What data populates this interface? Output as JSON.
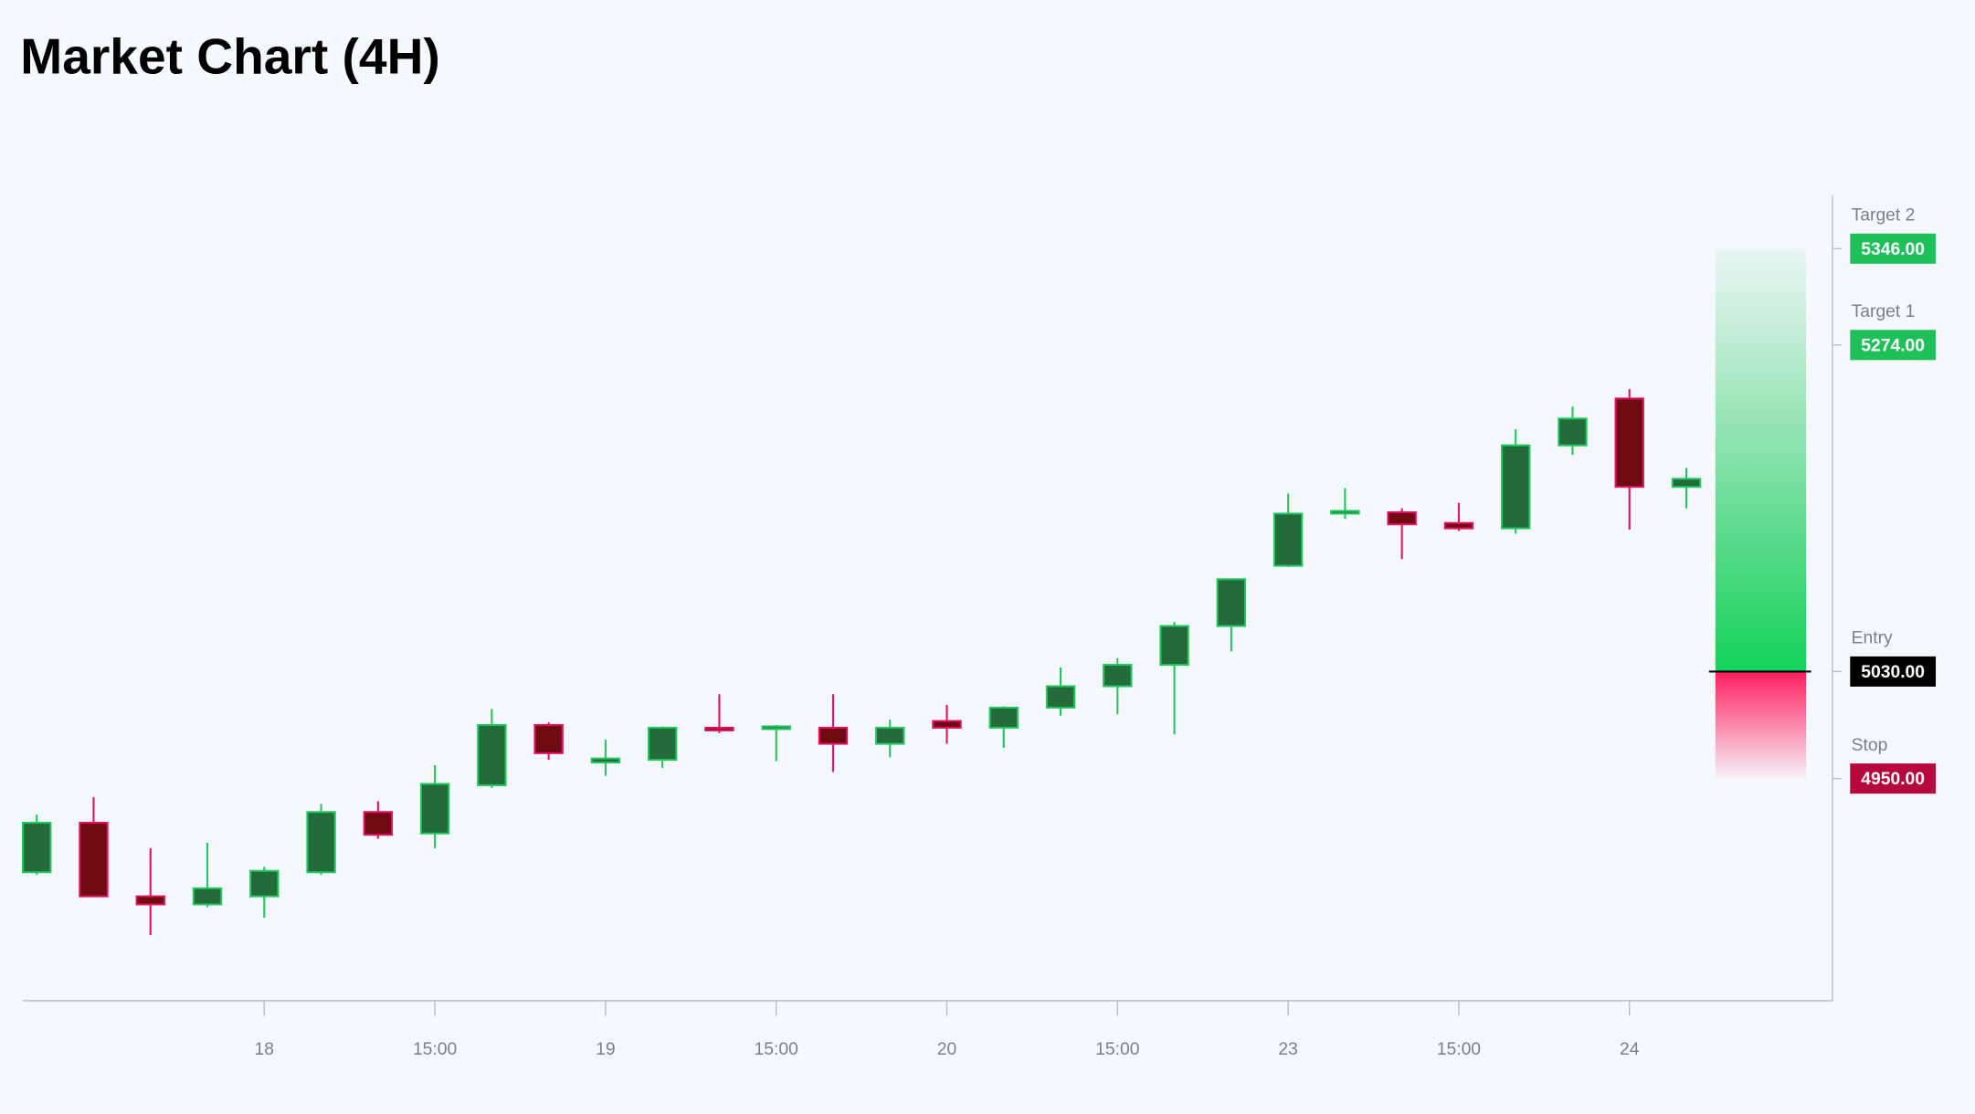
{
  "chart_data": {
    "type": "candlestick",
    "title": "Market Chart (4H)",
    "categories": [
      null,
      null,
      null,
      null,
      "18",
      null,
      null,
      "15:00",
      null,
      null,
      "19",
      null,
      null,
      "15:00",
      null,
      null,
      "20",
      null,
      null,
      "15:00",
      null,
      null,
      "23",
      null,
      null,
      "15:00",
      null,
      null,
      "24",
      null
    ],
    "open": [
      4880,
      4917,
      4862,
      4856,
      4862,
      4880,
      4925,
      4909,
      4945,
      4990,
      4962,
      4964,
      4988,
      4987,
      4988,
      4976,
      4993,
      4988,
      5003,
      5019,
      5035,
      5064,
      5109,
      5148,
      5149,
      5141,
      5137,
      5199,
      5234,
      5168
    ],
    "high": [
      4923,
      4936,
      4898,
      4902,
      4884,
      4931,
      4933,
      4960,
      5002,
      4992,
      4979,
      4989,
      5013,
      4990,
      5013,
      4994,
      5005,
      5004,
      5033,
      5040,
      5067,
      5099,
      5163,
      5167,
      5152,
      5156,
      5211,
      5228,
      5241,
      5182
    ],
    "low": [
      4878,
      4862,
      4833,
      4854,
      4846,
      4878,
      4905,
      4898,
      4943,
      4964,
      4952,
      4958,
      4984,
      4963,
      4955,
      4966,
      4976,
      4973,
      4997,
      4998,
      4983,
      5045,
      5108,
      5144,
      5114,
      5135,
      5133,
      5192,
      5136,
      5152
    ],
    "close": [
      4917,
      4862,
      4856,
      4868,
      4881,
      4925,
      4908,
      4946,
      4990,
      4969,
      4965,
      4988,
      4986,
      4989,
      4976,
      4988,
      4988,
      5003,
      5019,
      5035,
      5064,
      5099,
      5148,
      5150,
      5140,
      5137,
      5199,
      5219,
      5168,
      5174
    ],
    "up_color": "#236b3a",
    "up_edge": "#22c55e",
    "down_color": "#6e0a12",
    "down_edge": "#e0115f",
    "ylim": [
      4784,
      5386
    ],
    "levels": [
      {
        "name": "Target 2",
        "value": 5346,
        "value_label": "5346.00",
        "color": "#1fbf5a"
      },
      {
        "name": "Target 1",
        "value": 5274,
        "value_label": "5274.00",
        "color": "#1fbf5a"
      },
      {
        "name": "Entry",
        "value": 5030,
        "value_label": "5030.00",
        "color": "#000000"
      },
      {
        "name": "Stop",
        "value": 4950,
        "value_label": "4950.00",
        "color": "#b5083d"
      }
    ]
  }
}
